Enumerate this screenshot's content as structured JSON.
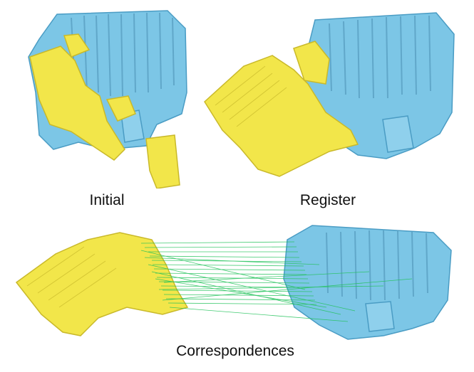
{
  "captions": {
    "initial": "Initial",
    "register": "Register",
    "correspondences": "Correspondences"
  },
  "colors": {
    "target_cloud": "#7cc6e6",
    "source_cloud": "#f2e64a",
    "correspondence_lines": "#22c25a",
    "background": "#ffffff"
  }
}
